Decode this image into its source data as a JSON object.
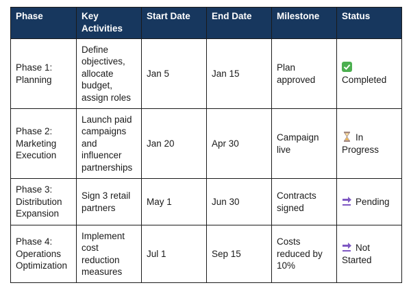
{
  "header": {
    "columns": [
      "Phase",
      "Key Activities",
      "Start Date",
      "End Date",
      "Milestone",
      "Status"
    ]
  },
  "table": {
    "rows": [
      [
        "Phase 1: Planning",
        "Define objectives, allocate budget, assign roles",
        "Jan 5",
        "Jan 15",
        "Plan approved",
        "Completed"
      ],
      [
        "Phase 2: Marketing Execution",
        "Launch paid campaigns and influencer partnerships",
        "Jan 20",
        "Apr 30",
        "Campaign live",
        "In Progress"
      ],
      [
        "Phase 3: Distribution Expansion",
        "Sign 3 retail partners",
        "May 1",
        "Jun 30",
        "Contracts signed",
        "Pending"
      ],
      [
        "Phase 4: Operations Optimization",
        "Implement cost reduction measures",
        "Jul 1",
        "Sep 15",
        "Costs reduced by 10%",
        "Not Started"
      ]
    ]
  }
}
